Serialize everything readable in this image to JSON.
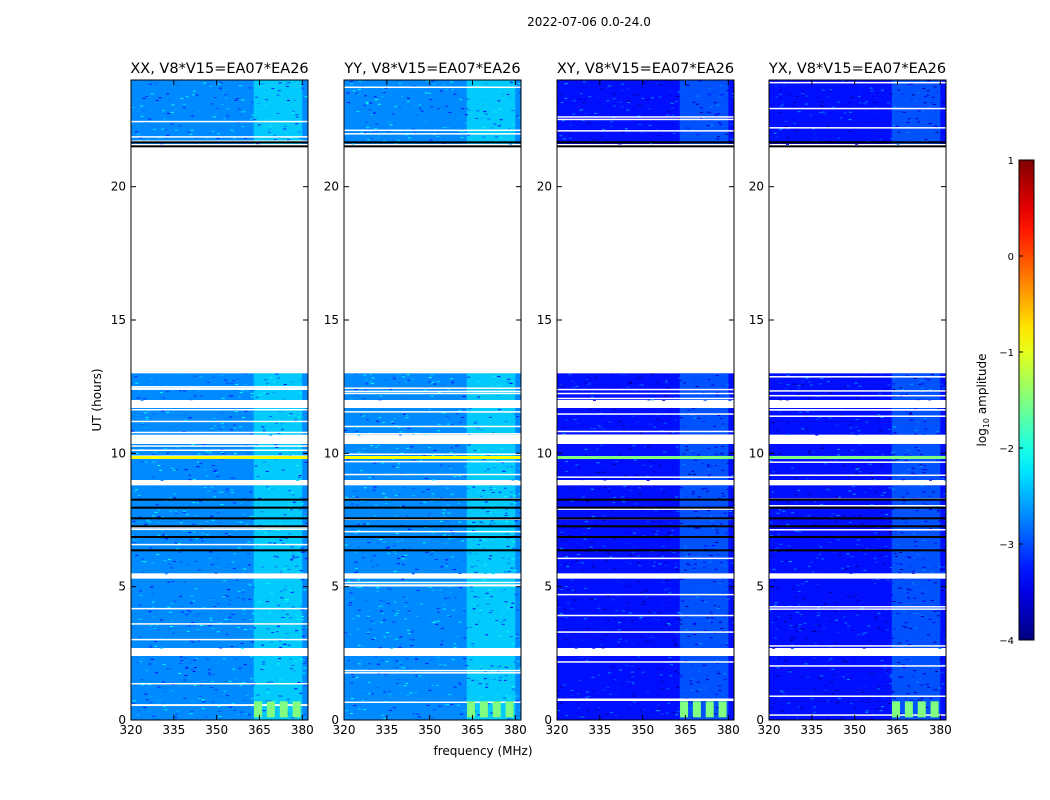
{
  "chart_data": {
    "type": "heatmap",
    "suptitle": "2022-07-06 0.0-24.0",
    "xlabel": "frequency (MHz)",
    "ylabel": "UT (hours)",
    "xlim": [
      320,
      382
    ],
    "ylim": [
      0,
      24
    ],
    "xticks": [
      "320",
      "335",
      "350",
      "365",
      "380"
    ],
    "xtick_values": [
      320,
      335,
      350,
      365,
      380
    ],
    "yticks": [
      "0",
      "5",
      "10",
      "15",
      "20"
    ],
    "ytick_values": [
      0,
      5,
      10,
      15,
      20
    ],
    "panels": [
      {
        "title": "XX, V8*V15=EA07*EA26",
        "pol": "XX",
        "baseline": "V8*V15",
        "antennas": "EA07*EA26",
        "level": -2.7
      },
      {
        "title": "YY, V8*V15=EA07*EA26",
        "pol": "YY",
        "baseline": "V8*V15",
        "antennas": "EA07*EA26",
        "level": -2.7
      },
      {
        "title": "XY, V8*V15=EA07*EA26",
        "pol": "XY",
        "baseline": "V8*V15",
        "antennas": "EA07*EA26",
        "level": -3.3
      },
      {
        "title": "YX, V8*V15=EA07*EA26",
        "pol": "YX",
        "baseline": "V8*V15",
        "antennas": "EA07*EA26",
        "level": -3.3
      }
    ],
    "data_segments_ut": [
      [
        0.0,
        2.4
      ],
      [
        2.7,
        5.3
      ],
      [
        5.5,
        8.8
      ],
      [
        9.0,
        10.35
      ],
      [
        10.7,
        11.7
      ],
      [
        12.0,
        13.0
      ],
      [
        21.6,
        24.0
      ]
    ],
    "rfi_band_mhz": [
      363,
      380
    ],
    "colorbar": {
      "label": "log",
      "label_sub": "10",
      "label_rest": " amplitude",
      "range": [
        -4,
        1
      ],
      "ticks": [
        "−4",
        "−3",
        "−2",
        "−1",
        "0",
        "1"
      ],
      "tick_values": [
        -4,
        -3,
        -2,
        -1,
        0,
        1
      ],
      "colormap": "jet"
    }
  }
}
